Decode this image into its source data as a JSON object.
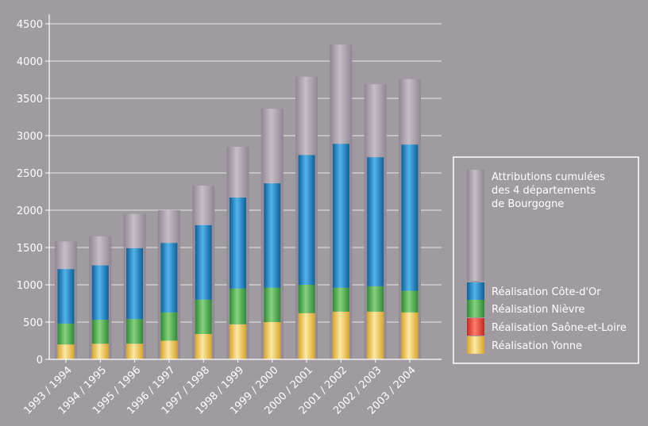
{
  "chart_data": {
    "type": "bar",
    "categories": [
      "1993 / 1994",
      "1994 / 1995",
      "1995 / 1996",
      "1996 / 1997",
      "1997 / 1998",
      "1998 / 1999",
      "1999 / 2000",
      "2000 / 2001",
      "2001 / 2002",
      "2002 / 2003",
      "2003 / 2004"
    ],
    "total_attributions": {
      "name": "Attributions cumulées des 4 départements de Bourgogne",
      "name_lines": [
        "Attributions cumulées",
        "des 4 départements",
        "de Bourgogne"
      ],
      "values": [
        1580,
        1650,
        1950,
        2000,
        2330,
        2850,
        3360,
        3790,
        4220,
        3690,
        3760
      ]
    },
    "series": [
      {
        "name": "Réalisation Yonne",
        "values": [
          200,
          210,
          210,
          250,
          340,
          470,
          500,
          620,
          640,
          640,
          630
        ]
      },
      {
        "name": "Réalisation Saône-et-Loire",
        "values": [
          0,
          0,
          0,
          0,
          0,
          0,
          0,
          0,
          0,
          0,
          0
        ]
      },
      {
        "name": "Réalisation Nièvre",
        "values": [
          280,
          320,
          330,
          380,
          460,
          480,
          460,
          380,
          320,
          340,
          290
        ]
      },
      {
        "name": "Réalisation Côte-d'Or",
        "values": [
          730,
          730,
          950,
          930,
          1000,
          1220,
          1400,
          1740,
          1930,
          1730,
          1960
        ]
      }
    ],
    "stack_order_bottom_to_top": [
      "Réalisation Yonne",
      "Réalisation Saône-et-Loire",
      "Réalisation Nièvre",
      "Réalisation Côte-d'Or"
    ],
    "legend_order_top_to_bottom": [
      "Réalisation Côte-d'Or",
      "Réalisation Nièvre",
      "Réalisation Saône-et-Loire",
      "Réalisation Yonne"
    ],
    "y_ticks": [
      0,
      500,
      1000,
      1500,
      2000,
      2500,
      3000,
      3500,
      4000,
      4500
    ],
    "ylim": [
      0,
      4500
    ],
    "grid": true,
    "legend_position": "right",
    "colors": {
      "background": "#a09aa1",
      "total": "#b1a8b3",
      "Réalisation Côte-d'Or": "#1e88c8",
      "Réalisation Nièvre": "#4fae4c",
      "Réalisation Saône-et-Loire": "#e8443a",
      "Réalisation Yonne": "#f2c94c",
      "grid": "#ffffff",
      "text": "#ffffff"
    }
  }
}
